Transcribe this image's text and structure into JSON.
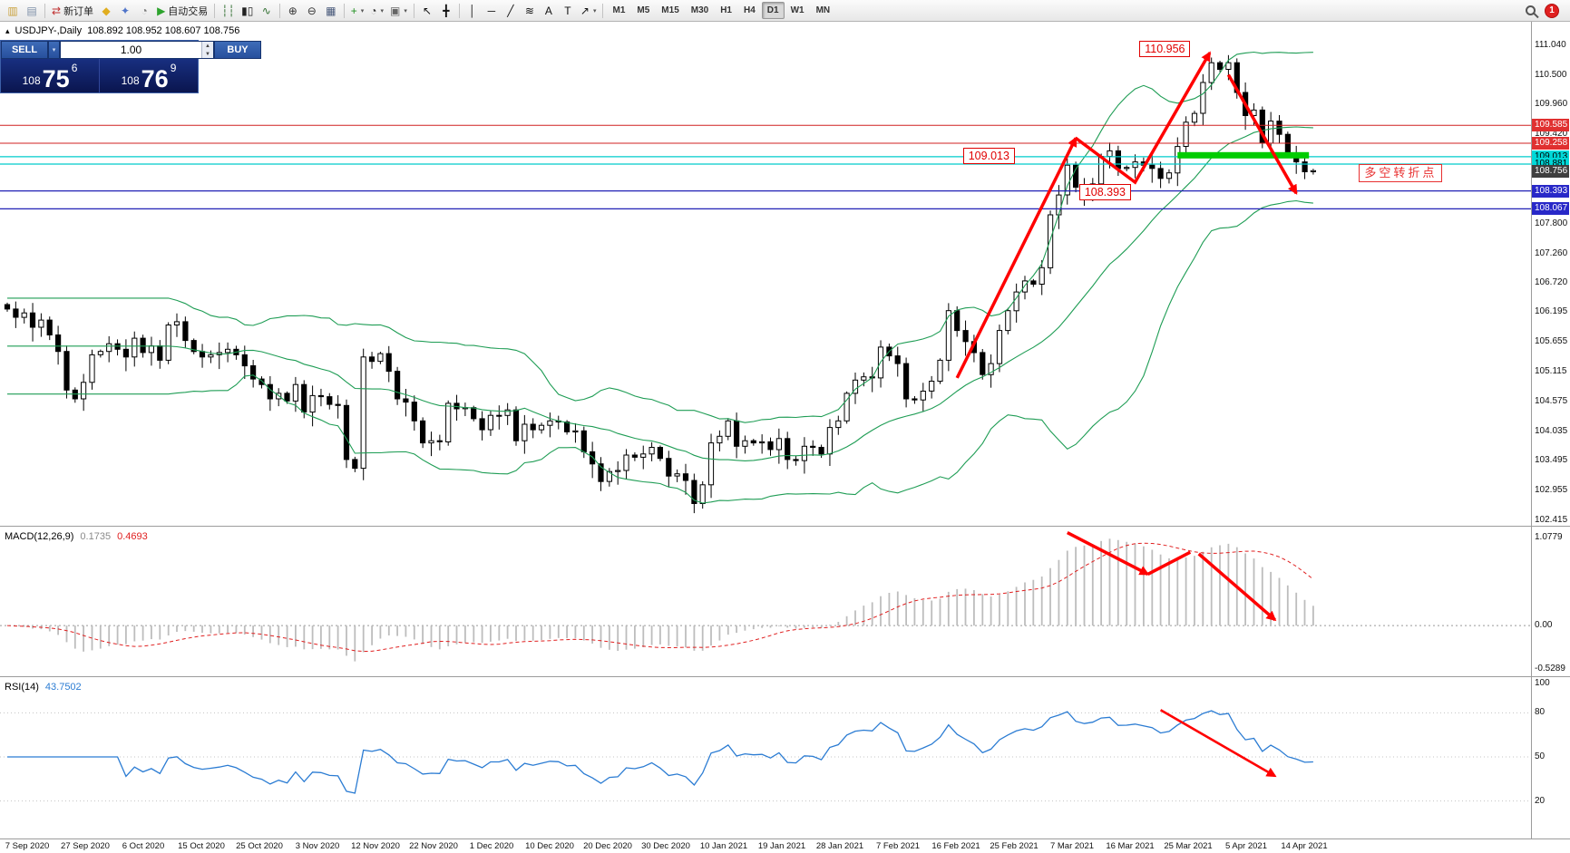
{
  "colors": {
    "bollinger": "#1f9d55",
    "macd_hist": "#bdbdbd",
    "macd_signal": "#e02020",
    "rsi": "#2b7cd3",
    "annotation": "#ff0000",
    "candle_up": "#ffffff",
    "candle_down": "#000000",
    "wick": "#000000"
  },
  "toolbar": {
    "notification_count": "1",
    "items": [
      {
        "kind": "icon",
        "name": "new-chart-icon",
        "glyph": "▥",
        "color": "#c9a13c"
      },
      {
        "kind": "icon",
        "name": "profiles-icon",
        "glyph": "▤",
        "color": "#7d8fa8"
      },
      {
        "kind": "sep"
      },
      {
        "kind": "button",
        "name": "new-order-button",
        "glyph": "⇄",
        "color": "#c03030",
        "label": "新订单"
      },
      {
        "kind": "icon",
        "name": "metaeditor-icon",
        "glyph": "◆",
        "color": "#e0ad1f"
      },
      {
        "kind": "icon",
        "name": "experts-icon",
        "glyph": "✦",
        "color": "#4f74c9"
      },
      {
        "kind": "icon",
        "name": "history-center-icon",
        "glyph": "◔",
        "color": "#777777"
      },
      {
        "kind": "button",
        "name": "autotrading-button",
        "glyph": "▶",
        "color": "#2da32d",
        "label": "自动交易"
      },
      {
        "kind": "sep"
      },
      {
        "kind": "icon",
        "name": "bar-chart-icon",
        "glyph": "┆┆",
        "color": "#2f6e2f"
      },
      {
        "kind": "icon",
        "name": "candlestick-chart-icon",
        "glyph": "▮▯",
        "color": "#222222"
      },
      {
        "kind": "icon",
        "name": "line-chart-icon",
        "glyph": "∿",
        "color": "#2f6e2f"
      },
      {
        "kind": "sep"
      },
      {
        "kind": "icon",
        "name": "zoom-in-icon",
        "glyph": "⊕",
        "color": "#333333"
      },
      {
        "kind": "icon",
        "name": "zoom-out-icon",
        "glyph": "⊖",
        "color": "#333333"
      },
      {
        "kind": "icon",
        "name": "tile-windows-icon",
        "glyph": "▦",
        "color": "#445577"
      },
      {
        "kind": "sep"
      },
      {
        "kind": "icon",
        "name": "indicators-icon",
        "glyph": "+",
        "color": "#1f8f1f",
        "caret": true
      },
      {
        "kind": "icon",
        "name": "periods-icon",
        "glyph": "◔",
        "color": "#333333",
        "caret": true
      },
      {
        "kind": "icon",
        "name": "templates-icon",
        "glyph": "▣",
        "color": "#666666",
        "caret": true
      },
      {
        "kind": "sep"
      },
      {
        "kind": "icon",
        "name": "cursor-icon",
        "glyph": "↖",
        "color": "#111111"
      },
      {
        "kind": "icon",
        "name": "crosshair-icon",
        "glyph": "╋",
        "color": "#111111"
      },
      {
        "kind": "sep"
      },
      {
        "kind": "icon",
        "name": "vertical-line-icon",
        "glyph": "│",
        "color": "#111111"
      },
      {
        "kind": "icon",
        "name": "horizontal-line-icon",
        "glyph": "─",
        "color": "#111111"
      },
      {
        "kind": "icon",
        "name": "trendline-icon",
        "glyph": "╱",
        "color": "#111111"
      },
      {
        "kind": "icon",
        "name": "fibonacci-icon",
        "glyph": "≋",
        "color": "#111111"
      },
      {
        "kind": "icon",
        "name": "text-icon",
        "glyph": "A",
        "color": "#111111"
      },
      {
        "kind": "icon",
        "name": "text-label-icon",
        "glyph": "T",
        "color": "#111111"
      },
      {
        "kind": "icon",
        "name": "arrows-tool-icon",
        "glyph": "↗",
        "color": "#111111",
        "caret": true
      },
      {
        "kind": "sep"
      },
      {
        "kind": "tf",
        "label": "M1"
      },
      {
        "kind": "tf",
        "label": "M5"
      },
      {
        "kind": "tf",
        "label": "M15"
      },
      {
        "kind": "tf",
        "label": "M30"
      },
      {
        "kind": "tf",
        "label": "H1"
      },
      {
        "kind": "tf",
        "label": "H4"
      },
      {
        "kind": "tf",
        "label": "D1",
        "active": true
      },
      {
        "kind": "tf",
        "label": "W1"
      },
      {
        "kind": "tf",
        "label": "MN"
      }
    ]
  },
  "chart": {
    "collapse_icon": "▴",
    "title_symbol": "USDJPY-,Daily",
    "title_ohlc": "108.892 108.952 108.607 108.756",
    "trade_panel": {
      "sell_label": "SELL",
      "buy_label": "BUY",
      "volume": "1.00",
      "sell_price": {
        "base": "108",
        "big": "75",
        "pip": "6"
      },
      "buy_price": {
        "base": "108",
        "big": "76",
        "pip": "9"
      }
    },
    "hlines": [
      {
        "price": 109.585,
        "color": "#d02020",
        "width": 1
      },
      {
        "price": 109.258,
        "color": "#d02020",
        "width": 1
      },
      {
        "price": 109.013,
        "color": "#00cccc",
        "width": 1.3
      },
      {
        "price": 108.881,
        "color": "#00cccc",
        "width": 1.3
      },
      {
        "price": 108.393,
        "color": "#2121b5",
        "width": 1.3
      },
      {
        "price": 108.067,
        "color": "#2121b5",
        "width": 1.3
      }
    ],
    "annotations": {
      "peak_label": {
        "text": "110.956",
        "index": 133.5,
        "price": 111.12
      },
      "level_label": {
        "text": "109.013",
        "index": 112.7,
        "price": 109.18
      },
      "dip_label": {
        "text": "108.393",
        "index": 126.4,
        "price": 108.52
      },
      "cn_label": {
        "text": "多空转折点",
        "index": 159.4,
        "price": 108.88
      },
      "green_segment": {
        "from_index": 138,
        "to_index": 153.5,
        "price": 109.04,
        "color": "#00cc00"
      },
      "arrows": [
        {
          "points": [
            [
              112,
              105.0
            ],
            [
              126,
              109.35
            ]
          ],
          "head": true,
          "width": 3.5
        },
        {
          "points": [
            [
              126,
              109.35
            ],
            [
              133,
              108.55
            ],
            [
              141.8,
              110.9
            ]
          ],
          "head": true,
          "width": 3.5
        },
        {
          "points": [
            [
              144,
              110.5
            ],
            [
              152,
              108.35
            ]
          ],
          "head": true,
          "width": 3.5
        }
      ]
    }
  },
  "price_axis": {
    "ticks": [
      "111.040",
      "110.500",
      "109.960",
      "109.420",
      "107.800",
      "107.260",
      "106.720",
      "106.195",
      "105.655",
      "105.115",
      "104.575",
      "104.035",
      "103.495",
      "102.955",
      "102.415"
    ],
    "badges": [
      {
        "value": "109.585",
        "bg": "#e03030",
        "fg": "#ffffff"
      },
      {
        "value": "109.258",
        "bg": "#e03030",
        "fg": "#ffffff"
      },
      {
        "value": "109.013",
        "bg": "#00d8d8",
        "fg": "#000000"
      },
      {
        "value": "108.881",
        "bg": "#00d8d8",
        "fg": "#000000"
      },
      {
        "value": "108.756",
        "bg": "#3f3f3f",
        "fg": "#ffffff"
      },
      {
        "value": "108.393",
        "bg": "#2828c8",
        "fg": "#ffffff"
      },
      {
        "value": "108.067",
        "bg": "#2828c8",
        "fg": "#ffffff"
      }
    ]
  },
  "macd": {
    "label": "MACD(12,26,9)",
    "value_main": "0.1735",
    "value_signal": "0.4693",
    "axis_labels": [
      "1.0779",
      "0.00",
      "-0.5289"
    ],
    "arrows": [
      {
        "points": [
          [
            125,
            1.14
          ],
          [
            134.5,
            0.63
          ]
        ],
        "head": true,
        "width": 3.5
      },
      {
        "points": [
          [
            134.5,
            0.63
          ],
          [
            139.5,
            0.9
          ]
        ],
        "head": false,
        "width": 3.5
      },
      {
        "points": [
          [
            140.5,
            0.88
          ],
          [
            149.5,
            0.07
          ]
        ],
        "head": true,
        "width": 3.5
      }
    ]
  },
  "rsi": {
    "label": "RSI(14)",
    "value": "43.7502",
    "axis_labels": [
      "100",
      "80",
      "50",
      "20"
    ],
    "levels": [
      80,
      50,
      20
    ],
    "arrows": [
      {
        "points": [
          [
            136,
            82
          ],
          [
            149.5,
            37
          ]
        ],
        "head": true,
        "width": 2.6
      }
    ]
  },
  "time_axis": {
    "dates": [
      "7 Sep 2020",
      "27 Sep 2020",
      "6 Oct 2020",
      "15 Oct 2020",
      "25 Oct 2020",
      "3 Nov 2020",
      "12 Nov 2020",
      "22 Nov 2020",
      "1 Dec 2020",
      "10 Dec 2020",
      "20 Dec 2020",
      "30 Dec 2020",
      "10 Jan 2021",
      "19 Jan 2021",
      "28 Jan 2021",
      "7 Feb 2021",
      "16 Feb 2021",
      "25 Feb 2021",
      "7 Mar 2021",
      "16 Mar 2021",
      "25 Mar 2021",
      "5 Apr 2021",
      "14 Apr 2021"
    ]
  },
  "chart_data": {
    "type": "candlestick",
    "symbol": "USDJPY-",
    "timeframe": "Daily",
    "ohlc_display": {
      "open": "108.892",
      "high": "108.952",
      "low": "108.607",
      "close": "108.756"
    },
    "ylim": [
      102.35,
      111.43
    ],
    "indicators": [
      "Bollinger Bands(20,2)",
      "MACD(12,26,9)",
      "RSI(14)"
    ],
    "closes": [
      106.25,
      106.1,
      106.18,
      105.92,
      106.05,
      105.78,
      105.48,
      104.78,
      104.62,
      104.92,
      105.42,
      105.48,
      105.62,
      105.52,
      105.38,
      105.72,
      105.46,
      105.58,
      105.32,
      105.96,
      106.02,
      105.68,
      105.48,
      105.38,
      105.42,
      105.46,
      105.52,
      105.42,
      105.22,
      104.98,
      104.88,
      104.62,
      104.72,
      104.58,
      104.88,
      104.38,
      104.68,
      104.66,
      104.52,
      104.5,
      103.52,
      103.36,
      105.38,
      105.3,
      105.44,
      105.12,
      104.62,
      104.56,
      104.22,
      103.82,
      103.86,
      103.84,
      104.54,
      104.44,
      104.46,
      104.26,
      104.06,
      104.32,
      104.32,
      104.42,
      103.86,
      104.16,
      104.06,
      104.14,
      104.22,
      104.2,
      104.02,
      104.04,
      103.66,
      103.44,
      103.12,
      103.3,
      103.32,
      103.6,
      103.56,
      103.62,
      103.74,
      103.54,
      103.22,
      103.26,
      103.14,
      102.72,
      103.06,
      103.82,
      103.94,
      104.22,
      103.76,
      103.86,
      103.82,
      103.84,
      103.7,
      103.9,
      103.52,
      103.5,
      103.76,
      103.74,
      103.62,
      104.1,
      104.22,
      104.72,
      104.96,
      105.02,
      105.0,
      105.56,
      105.4,
      105.26,
      104.62,
      104.6,
      104.76,
      104.94,
      105.32,
      106.22,
      105.86,
      105.66,
      105.46,
      105.06,
      105.26,
      105.86,
      106.22,
      106.56,
      106.76,
      106.7,
      107.0,
      107.96,
      108.32,
      108.86,
      108.46,
      108.36,
      108.52,
      109.02,
      109.12,
      108.8,
      108.82,
      108.92,
      108.86,
      108.8,
      108.62,
      108.72,
      109.2,
      109.64,
      109.8,
      110.36,
      110.72,
      110.6,
      110.72,
      110.18,
      109.76,
      109.86,
      109.26,
      109.66,
      109.42,
      109.06,
      108.92,
      108.74,
      108.76
    ]
  }
}
